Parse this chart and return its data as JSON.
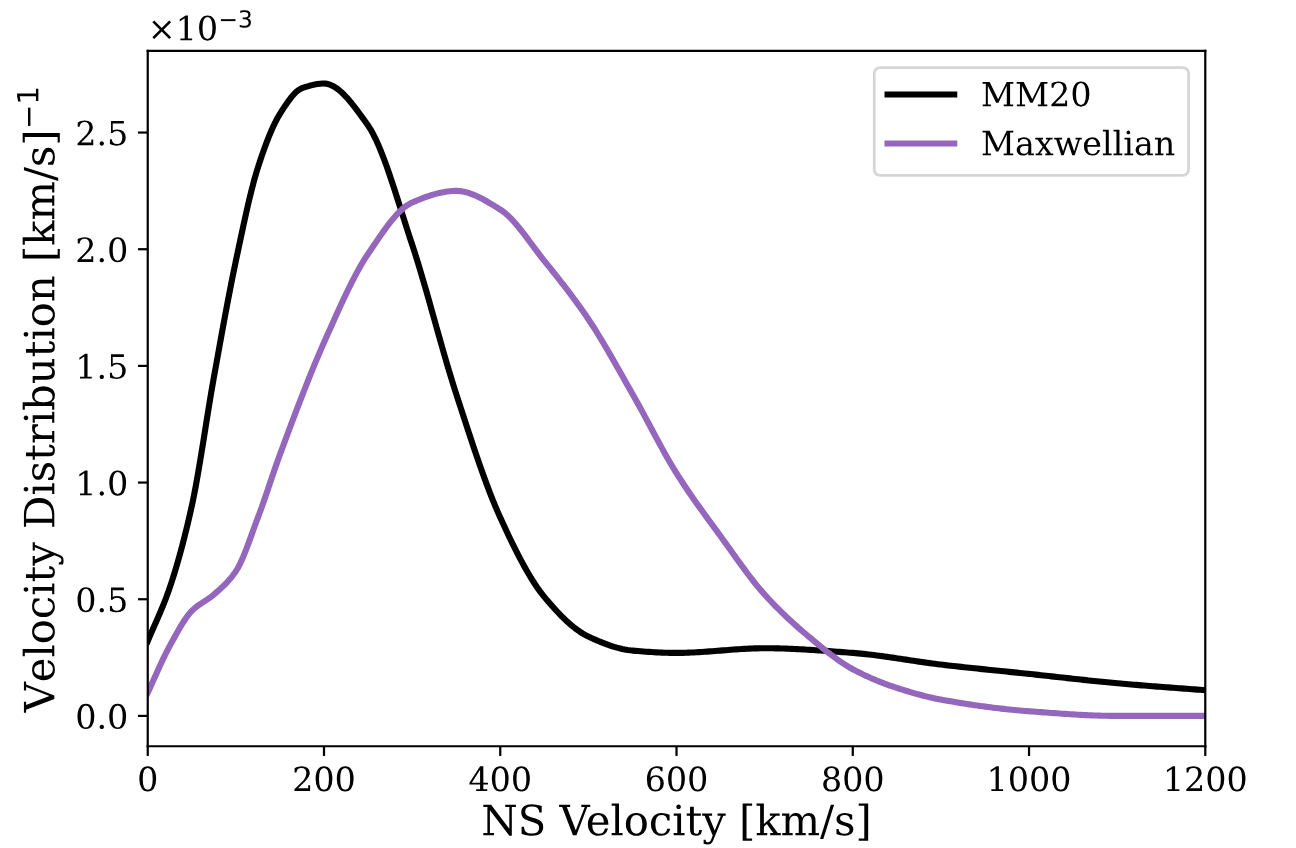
{
  "chart_data": {
    "type": "line",
    "xlabel": "NS Velocity [km/s]",
    "ylabel": "Velocity Distribution [km/s]$^{−1}$",
    "annotations": [
      "×10$^{−3}$"
    ],
    "xlim": [
      0,
      1200
    ],
    "xticks": [
      0,
      200,
      400,
      600,
      800,
      1000,
      1200
    ],
    "ylim": [
      -0.13,
      2.85
    ],
    "yticks": [
      {
        "value": 0,
        "label": "0.0"
      },
      0.5,
      {
        "value": 1,
        "label": "1.0"
      },
      1.5,
      {
        "value": 2,
        "label": "2.0"
      },
      2.5
    ],
    "grid": false,
    "legend": "top right",
    "line_style": "solid",
    "marker": "none",
    "series": [
      {
        "name": "MM20",
        "color": "#000000",
        "x": [
          0,
          25,
          50,
          75,
          100,
          125,
          150,
          175,
          200,
          250,
          300,
          350,
          400,
          450,
          500,
          550,
          600,
          700,
          800,
          900,
          1000,
          1100,
          1200
        ],
        "values": [
          0.32,
          0.55,
          0.9,
          1.45,
          1.95,
          2.35,
          2.58,
          2.69,
          2.71,
          2.53,
          2.02,
          1.38,
          0.85,
          0.51,
          0.34,
          0.28,
          0.27,
          0.29,
          0.27,
          0.22,
          0.18,
          0.14,
          0.11
        ]
      },
      {
        "name": "Maxwellian",
        "color": "#9467bd",
        "x": [
          0,
          25,
          50,
          75,
          100,
          125,
          150,
          200,
          250,
          300,
          350,
          400,
          450,
          500,
          550,
          600,
          650,
          700,
          750,
          800,
          850,
          900,
          1000,
          1100,
          1200
        ],
        "values": [
          0.1,
          0.3,
          0.45,
          0.52,
          0.62,
          0.85,
          1.12,
          1.6,
          1.98,
          2.2,
          2.25,
          2.17,
          1.95,
          1.7,
          1.38,
          1.04,
          0.77,
          0.52,
          0.34,
          0.2,
          0.12,
          0.07,
          0.02,
          0.0,
          0.0
        ]
      }
    ]
  }
}
